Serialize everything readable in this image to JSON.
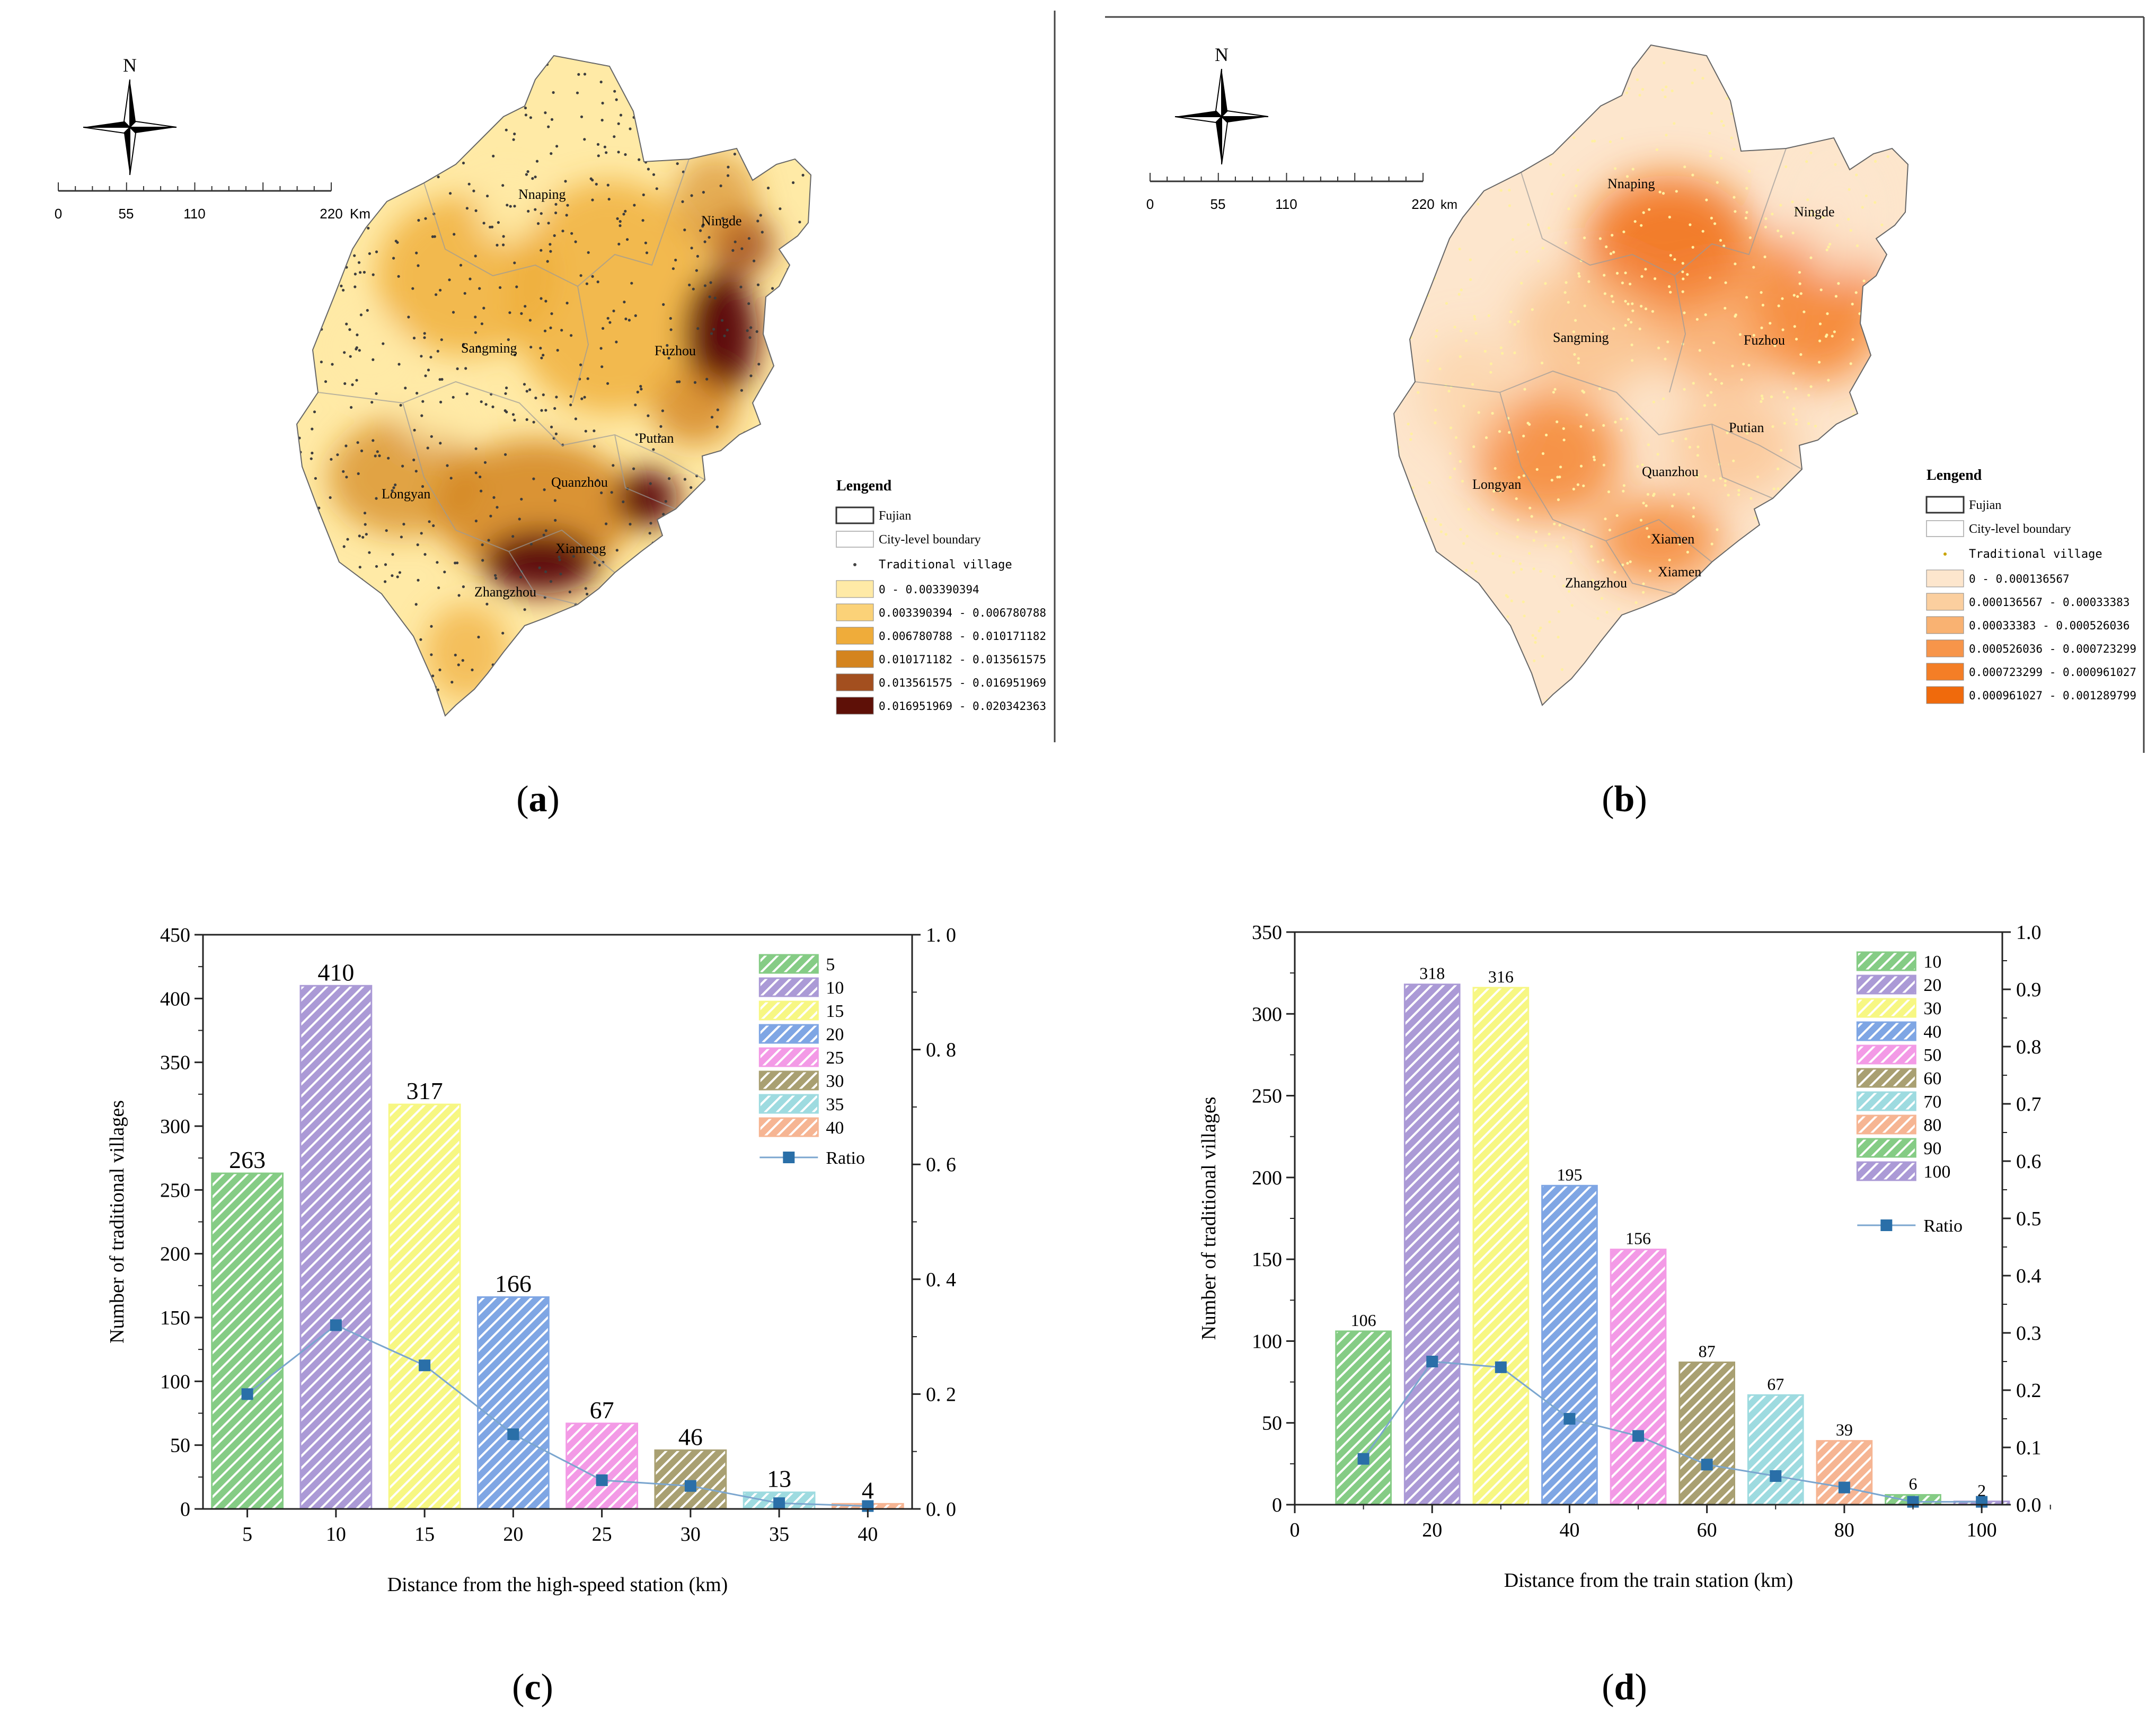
{
  "panels": {
    "a": {
      "label_open": "(",
      "label_letter": "a",
      "label_close": ")",
      "north": "N",
      "scale": [
        "0",
        "55",
        "110",
        "220",
        "Km"
      ],
      "cities": [
        "Nnaping",
        "Ningde",
        "Sangming",
        "Fuzhou",
        "Putian",
        "Longyan",
        "Quanzhou",
        "Xiameng",
        "Zhangzhou"
      ],
      "legend_title": "Lengend",
      "legend_boundary": [
        "Fujian",
        "City-level boundary"
      ],
      "legend_point": "Traditional village",
      "legend_classes": [
        "0 - 0.003390394",
        "0.003390394 - 0.006780788",
        "0.006780788 - 0.010171182",
        "0.010171182 - 0.013561575",
        "0.013561575 - 0.016951969",
        "0.016951969 - 0.020342363"
      ],
      "legend_colors": [
        "#ffeaa6",
        "#fbd278",
        "#efac3a",
        "#d4841e",
        "#a34f1f",
        "#5e1007"
      ]
    },
    "b": {
      "label_open": "(",
      "label_letter": "b",
      "label_close": ")",
      "north": "N",
      "scale": [
        "0",
        "55",
        "110",
        "220",
        "km"
      ],
      "cities": [
        "Nnaping",
        "Ningde",
        "Sangming",
        "Fuzhou",
        "Putian",
        "Longyan",
        "Quanzhou",
        "Xiamen",
        "Zhangzhou",
        "Xiamen"
      ],
      "legend_title": "Lengend",
      "legend_boundary": [
        "Fujian",
        "City-level boundary"
      ],
      "legend_point": "Traditional village",
      "legend_classes": [
        "0 - 0.000136567",
        "0.000136567 - 0.00033383",
        "0.00033383 - 0.000526036",
        "0.000526036 - 0.000723299",
        "0.000723299 - 0.000961027",
        "0.000961027 - 0.001289799"
      ],
      "legend_colors": [
        "#fde6cd",
        "#fbcf9f",
        "#f9b272",
        "#f7954a",
        "#f47e26",
        "#f06a0c"
      ]
    },
    "c": {
      "label_open": "(",
      "label_letter": "c",
      "label_close": ")"
    },
    "d": {
      "label_open": "(",
      "label_letter": "d",
      "label_close": ")"
    }
  },
  "chart_data": [
    {
      "type": "bar",
      "title": "",
      "xlabel": "Distance from the high-speed station (km)",
      "ylabel": "Number of traditional villages",
      "categories": [
        "5",
        "10",
        "15",
        "20",
        "25",
        "30",
        "35",
        "40"
      ],
      "values": [
        263,
        410,
        317,
        166,
        67,
        46,
        13,
        4
      ],
      "value_labels": [
        "263",
        "410",
        "317",
        "166",
        "67",
        "46",
        "13",
        "4"
      ],
      "ylim": [
        0,
        450
      ],
      "yticks": [
        "0",
        "50",
        "100",
        "150",
        "200",
        "250",
        "300",
        "350",
        "400",
        "450"
      ],
      "y2lim": [
        0,
        1.0
      ],
      "y2ticks": [
        "0. 0",
        "0. 2",
        "0. 4",
        "0. 6",
        "0. 8",
        "1. 0"
      ],
      "xticks": [
        "5",
        "10",
        "15",
        "20",
        "25",
        "30",
        "35",
        "40"
      ],
      "ratio_name": "Ratio",
      "ratio": [
        0.2,
        0.32,
        0.25,
        0.13,
        0.05,
        0.04,
        0.01,
        0.005
      ],
      "legend": [
        "5",
        "10",
        "15",
        "20",
        "25",
        "30",
        "35",
        "40"
      ],
      "colors": [
        "#85cc85",
        "#ab9ad6",
        "#f7f783",
        "#7fa6e4",
        "#f39ae6",
        "#a9a072",
        "#9edbe0",
        "#f6b593"
      ],
      "line_color": "#2a6fa8",
      "legend_position": "top-right"
    },
    {
      "type": "bar",
      "title": "",
      "xlabel": "Distance from the train station (km)",
      "ylabel": "Number of traditional villages",
      "x": [
        10,
        20,
        30,
        40,
        50,
        60,
        70,
        80,
        90,
        100
      ],
      "values": [
        106,
        318,
        316,
        195,
        156,
        87,
        67,
        39,
        6,
        2
      ],
      "value_labels": [
        "106",
        "318",
        "316",
        "195",
        "156",
        "87",
        "67",
        "39",
        "6",
        "2"
      ],
      "xlim": [
        0,
        103
      ],
      "xticks": [
        "0",
        "20",
        "40",
        "60",
        "80",
        "100"
      ],
      "ylim": [
        0,
        350
      ],
      "yticks": [
        "0",
        "50",
        "100",
        "150",
        "200",
        "250",
        "300",
        "350"
      ],
      "y2lim": [
        0,
        1.0
      ],
      "y2ticks": [
        "0.0",
        "0.1",
        "0.2",
        "0.3",
        "0.4",
        "0.5",
        "0.6",
        "0.7",
        "0.8",
        "0.9",
        "1.0"
      ],
      "ratio_name": "Ratio",
      "ratio": [
        0.08,
        0.25,
        0.24,
        0.15,
        0.12,
        0.07,
        0.05,
        0.03,
        0.005,
        0.005
      ],
      "legend": [
        "10",
        "20",
        "30",
        "40",
        "50",
        "60",
        "70",
        "80",
        "90",
        "100"
      ],
      "colors": [
        "#85cc85",
        "#ab9ad6",
        "#f7f783",
        "#7fa6e4",
        "#f39ae6",
        "#a9a072",
        "#9edbe0",
        "#f6b593",
        "#85cc85",
        "#ab9ad6"
      ],
      "line_color": "#2a6fa8",
      "legend_position": "top-right"
    }
  ]
}
